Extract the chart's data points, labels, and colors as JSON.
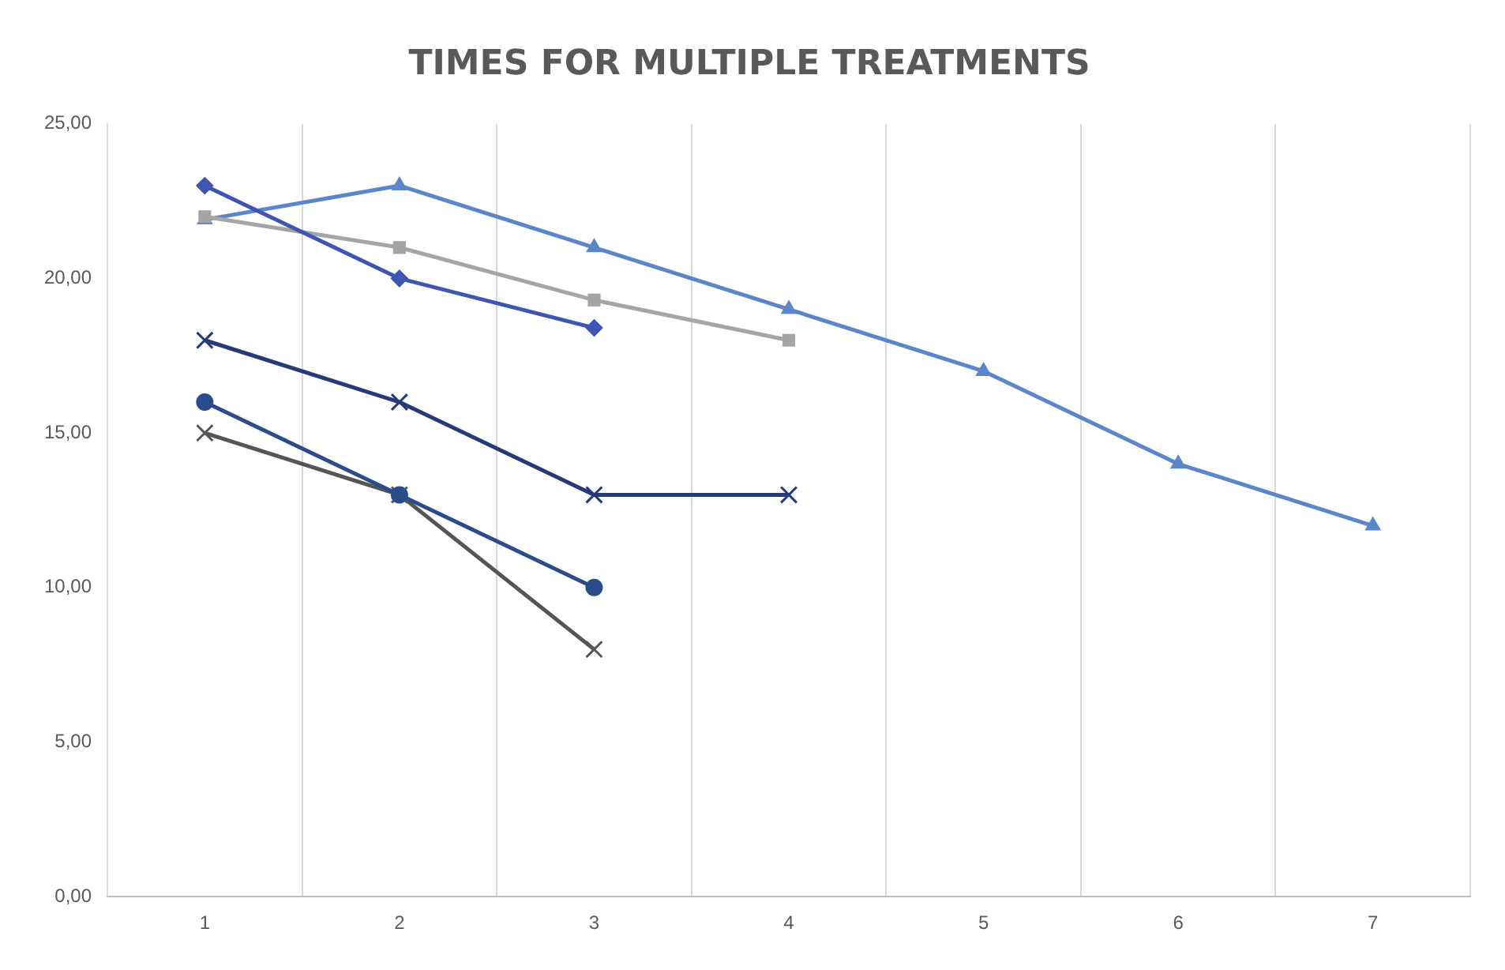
{
  "chart_data": {
    "type": "line",
    "title": "TIMES FOR MULTIPLE TREATMENTS",
    "categories": [
      "1",
      "2",
      "3",
      "4",
      "5",
      "6",
      "7"
    ],
    "ylim": [
      0,
      25
    ],
    "yticks": [
      {
        "value": 0,
        "label": "0,00"
      },
      {
        "value": 5,
        "label": "5,00"
      },
      {
        "value": 10,
        "label": "10,00"
      },
      {
        "value": 15,
        "label": "15,00"
      },
      {
        "value": 20,
        "label": "20,00"
      },
      {
        "value": 25,
        "label": "25,00"
      }
    ],
    "grid": "x",
    "legend": false,
    "series": [
      {
        "color": "#4054b2",
        "marker": "diamond",
        "values": [
          23,
          20,
          18.4,
          null,
          null,
          null,
          null
        ]
      },
      {
        "color": "#a5a5a5",
        "marker": "square",
        "values": [
          22,
          21,
          19.3,
          18,
          null,
          null,
          null
        ]
      },
      {
        "color": "#5b86c9",
        "marker": "triangle",
        "values": [
          21.9,
          23,
          21,
          19,
          17,
          14,
          12
        ]
      },
      {
        "color": "#263a7a",
        "marker": "cross",
        "values": [
          18,
          16,
          13,
          13,
          null,
          null,
          null
        ]
      },
      {
        "color": "#2b4c8a",
        "marker": "circle",
        "values": [
          16,
          13,
          10,
          null,
          null,
          null,
          null
        ]
      },
      {
        "color": "#555555",
        "marker": "cross",
        "values": [
          15,
          13,
          8,
          null,
          null,
          null,
          null
        ]
      }
    ]
  }
}
